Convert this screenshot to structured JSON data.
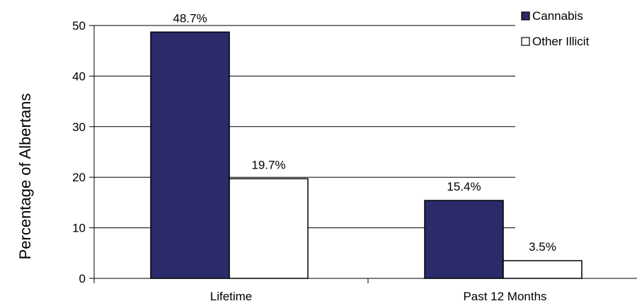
{
  "chart_data": {
    "type": "bar",
    "title": "",
    "xlabel": "",
    "ylabel": "Percentage of Albertans",
    "categories": [
      "Lifetime",
      "Past 12 Months"
    ],
    "series": [
      {
        "name": "Cannabis",
        "values": [
          48.7,
          15.4
        ],
        "labels": [
          "48.7%",
          "15.4%"
        ],
        "color": "#2b2a6b"
      },
      {
        "name": "Other Illicit",
        "values": [
          19.7,
          3.5
        ],
        "labels": [
          "19.7%",
          "3.5%"
        ],
        "color": "#ffffff"
      }
    ],
    "ylim": [
      0,
      50
    ],
    "yticks": [
      0,
      10,
      20,
      30,
      40,
      50
    ],
    "grid": true,
    "legend_position": "top-right"
  }
}
